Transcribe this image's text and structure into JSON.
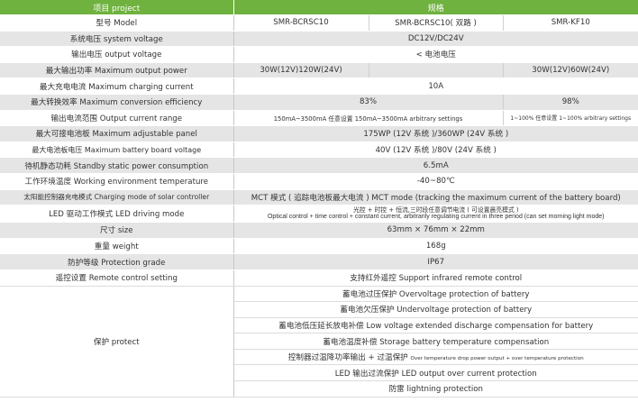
{
  "header": {
    "item": "项目 project",
    "spec": "规格"
  },
  "rows": [
    {
      "label": "型号 Model",
      "models": [
        "SMR-BCRSC10",
        "SMR-BCRSC10( 双路 )",
        "SMR-KF10"
      ]
    },
    {
      "label": "系统电压 system voltage",
      "value": "DC12V/DC24V"
    },
    {
      "label": "输出电压 output voltage",
      "value": "< 电池电压"
    },
    {
      "label": "最大输出功率 Maximum output power",
      "a": "30W(12V)120W(24V)",
      "b": "",
      "c": "30W(12V)60W(24V)"
    },
    {
      "label": "最大充电电流 Maximum charging current",
      "value": "10A"
    },
    {
      "label": "最大转换效率 Maximum conversion efficiency",
      "ab": "83%",
      "c": "98%"
    },
    {
      "label": "输出电流范围 Output current range",
      "ab": "150mA~3500mA 任意设置 150mA~3500mA arbitrary settings",
      "c": "1~100% 任意设置 1~100% arbitrary settings"
    },
    {
      "label": "最大可接电池板 Maximum adjustable panel",
      "value": "175WP (12V 系统 )/360WP (24V 系统 )"
    },
    {
      "label": "最大电池板电压 Maximum battery board voltage",
      "value": "40V (12V 系统 )/80V (24V 系统 )"
    },
    {
      "label": "待机静态功耗 Standby static power consumption",
      "value": "6.5mA"
    },
    {
      "label": "工作环境温度 Working environment temperature",
      "value": "-40~80℃"
    },
    {
      "label": "太阳能控制器充电模式 Charging mode of solar controller",
      "value": "MCT 模式 ( 追踪电池板最大电流 )  MCT mode (tracking the maximum current of the battery board)"
    },
    {
      "label": "LED 驱动工作模式 LED driving mode",
      "value_cn": "光控 + 时控 + 恒流,三时段任意调节电流 ( 可设置晨亮模式 )",
      "value_en": "Optical control + time control + constant current, arbitrarily regulating current in three period (can set morning light mode)"
    },
    {
      "label": "尺寸 size",
      "value": "63mm × 76mm × 22mm"
    },
    {
      "label": "重量 weight",
      "value": "168g"
    },
    {
      "label": "防护等级 Protection grade",
      "value": "IP67"
    },
    {
      "label": "遥控设置 Remote control setting",
      "value": "支持红外遥控  Support infrared remote control"
    }
  ],
  "protect": {
    "label": "保护 protect",
    "items": [
      "蓄电池过压保护  Overvoltage protection of battery",
      "蓄电池欠压保护 Undervoltage protection of battery",
      "蓄电池低压延长放电补偿  Low voltage extended discharge compensation for battery",
      "蓄电池温度补偿  Storage battery temperature compensation",
      "控制器过温降功率输出 + 过温保护",
      "LED 输出过流保护  LED output over current protection",
      "防雷 lightning protection"
    ],
    "item5_en": "Over temperature drop power output + over temperature protection"
  }
}
